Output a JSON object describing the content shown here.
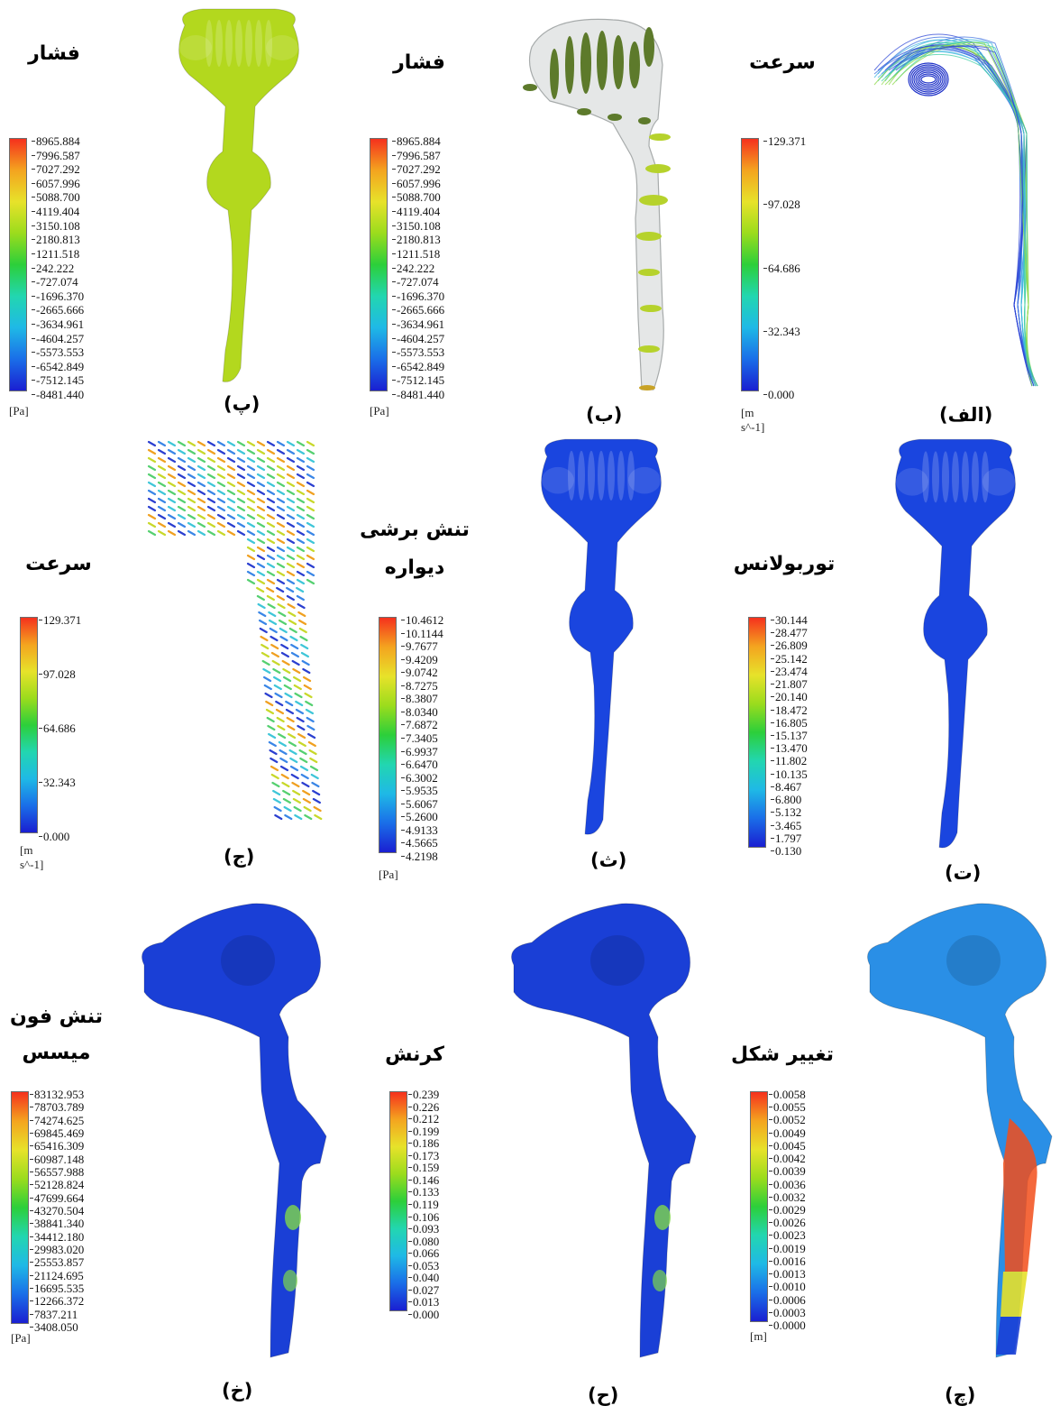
{
  "colormap": [
    "#1a1fd1",
    "#1a6ee8",
    "#1fb9e6",
    "#22d6b0",
    "#2ccf3a",
    "#9bdc1d",
    "#e7e22a",
    "#f4a41f",
    "#f5311d"
  ],
  "panels": [
    {
      "key": "alef",
      "label": "(الف)",
      "title": [
        "سرعت"
      ],
      "unit": "[m s^-1]",
      "ticks": [
        "129.371",
        "97.028",
        "64.686",
        "32.343",
        "0.000"
      ],
      "render": "streamlines",
      "fill": "#2f6fe0"
    },
    {
      "key": "be",
      "label": "(ب)",
      "title": [
        "فشار"
      ],
      "unit": "[Pa]",
      "ticks": [
        "8965.884",
        "7996.587",
        "7027.292",
        "6057.996",
        "5088.700",
        "4119.404",
        "3150.108",
        "2180.813",
        "1211.518",
        "242.222",
        "-727.074",
        "-1696.370",
        "-2665.666",
        "-3634.961",
        "-4604.257",
        "-5573.553",
        "-6542.849",
        "-7512.145",
        "-8481.440"
      ],
      "render": "slices",
      "fill": "#d9dcdc"
    },
    {
      "key": "pe",
      "label": "(پ)",
      "title": [
        "فشار"
      ],
      "unit": "[Pa]",
      "ticks": [
        "8965.884",
        "7996.587",
        "7027.292",
        "6057.996",
        "5088.700",
        "4119.404",
        "3150.108",
        "2180.813",
        "1211.518",
        "242.222",
        "-727.074",
        "-1696.370",
        "-2665.666",
        "-3634.961",
        "-4604.257",
        "-5573.553",
        "-6542.849",
        "-7512.145",
        "-8481.440"
      ],
      "render": "front",
      "fill": "#b3d81e"
    },
    {
      "key": "te",
      "label": "(ت)",
      "title": [
        "توربولانس"
      ],
      "unit": "",
      "ticks": [
        "30.144",
        "28.477",
        "26.809",
        "25.142",
        "23.474",
        "21.807",
        "20.140",
        "18.472",
        "16.805",
        "15.137",
        "13.470",
        "11.802",
        "10.135",
        "8.467",
        "6.800",
        "5.132",
        "3.465",
        "1.797",
        "0.130"
      ],
      "render": "front",
      "fill": "#1a45df"
    },
    {
      "key": "se",
      "label": "(ث)",
      "title": [
        "تنش برشی",
        "دیواره"
      ],
      "unit": "[Pa]",
      "ticks": [
        "10.4612",
        "10.1144",
        "9.7677",
        "9.4209",
        "9.0742",
        "8.7275",
        "8.3807",
        "8.0340",
        "7.6872",
        "7.3405",
        "6.9937",
        "6.6470",
        "6.3002",
        "5.9535",
        "5.6067",
        "5.2600",
        "4.9133",
        "4.5665",
        "4.2198"
      ],
      "render": "front",
      "fill": "#1a45df"
    },
    {
      "key": "jim",
      "label": "(ج)",
      "title": [
        "سرعت"
      ],
      "unit": "[m s^-1]",
      "ticks": [
        "129.371",
        "97.028",
        "64.686",
        "32.343",
        "0.000"
      ],
      "render": "vectors",
      "fill": "#2b4fd8"
    },
    {
      "key": "che",
      "label": "(چ)",
      "title": [
        "تغییر شکل"
      ],
      "unit": "[m]",
      "ticks": [
        "0.0058",
        "0.0055",
        "0.0052",
        "0.0049",
        "0.0045",
        "0.0042",
        "0.0039",
        "0.0036",
        "0.0032",
        "0.0029",
        "0.0026",
        "0.0023",
        "0.0019",
        "0.0016",
        "0.0013",
        "0.0010",
        "0.0006",
        "0.0003",
        "0.0000"
      ],
      "render": "side",
      "fill": "#2a8fe6"
    },
    {
      "key": "he",
      "label": "(ح)",
      "title": [
        "کرنش"
      ],
      "unit": "",
      "ticks": [
        "0.239",
        "0.226",
        "0.212",
        "0.199",
        "0.186",
        "0.173",
        "0.159",
        "0.146",
        "0.133",
        "0.119",
        "0.106",
        "0.093",
        "0.080",
        "0.066",
        "0.053",
        "0.040",
        "0.027",
        "0.013",
        "0.000"
      ],
      "render": "side",
      "fill": "#1a3fd6"
    },
    {
      "key": "khe",
      "label": "(خ)",
      "title": [
        "تنش فون",
        "میسس"
      ],
      "unit": "[Pa]",
      "ticks": [
        "83132.953",
        "78703.789",
        "74274.625",
        "69845.469",
        "65416.309",
        "60987.148",
        "56557.988",
        "52128.824",
        "47699.664",
        "43270.504",
        "38841.340",
        "34412.180",
        "29983.020",
        "25553.857",
        "21124.695",
        "16695.535",
        "12266.372",
        "7837.211",
        "3408.050"
      ],
      "render": "side",
      "fill": "#1a3fd6"
    }
  ]
}
